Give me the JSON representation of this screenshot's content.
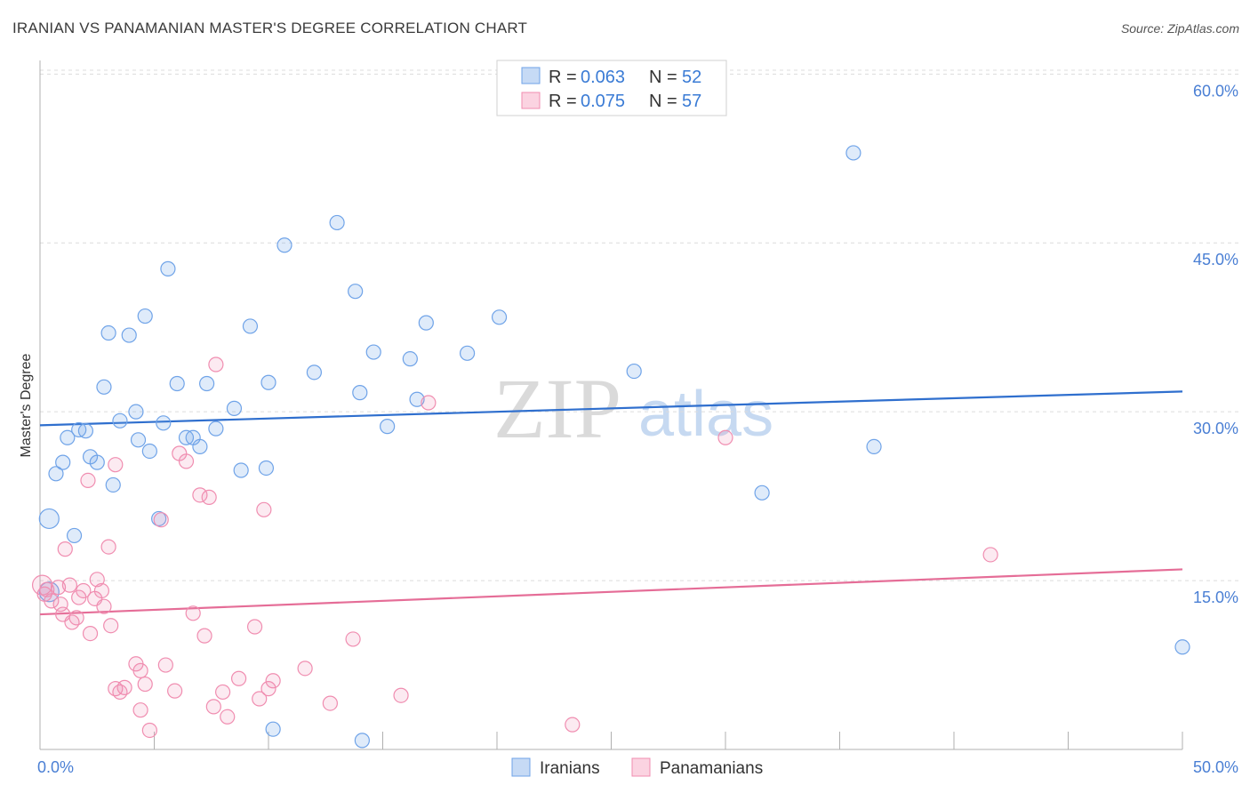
{
  "title": "IRANIAN VS PANAMANIAN MASTER'S DEGREE CORRELATION CHART",
  "source": "Source: ZipAtlas.com",
  "watermark": {
    "zip": "ZIP",
    "atlas": "atlas"
  },
  "legend": {
    "series": [
      {
        "r_label": "R = ",
        "r_value": "0.063",
        "n_label": "N = ",
        "n_value": "52"
      },
      {
        "r_label": "R = ",
        "r_value": "0.075",
        "n_label": "N = ",
        "n_value": "57"
      }
    ]
  },
  "chart_data": {
    "type": "scatter",
    "title": "IRANIAN VS PANAMANIAN MASTER'S DEGREE CORRELATION CHART",
    "xlabel": "",
    "ylabel": "Master's Degree",
    "xlim": [
      0,
      50
    ],
    "ylim": [
      0,
      62
    ],
    "x_tick_labels": [
      "0.0%",
      "50.0%"
    ],
    "y_ticks": [
      15,
      30,
      45,
      60
    ],
    "y_tick_labels": [
      "15.0%",
      "30.0%",
      "45.0%",
      "60.0%"
    ],
    "colors": {
      "Iranians": "#6fa3e8",
      "Panamanians": "#f08db0",
      "trend_Iranians": "#2f6fce",
      "trend_Panamanians": "#e56d97"
    },
    "series": [
      {
        "name": "Iranians",
        "r": 0.063,
        "n": 52,
        "trend": {
          "x": [
            0,
            50
          ],
          "y": [
            28.8,
            31.8
          ]
        },
        "points": [
          {
            "x": 0.4,
            "y": 20.5,
            "big": true
          },
          {
            "x": 0.4,
            "y": 14.0,
            "big": true
          },
          {
            "x": 0.7,
            "y": 24.5
          },
          {
            "x": 1.0,
            "y": 25.5
          },
          {
            "x": 1.2,
            "y": 27.7
          },
          {
            "x": 1.5,
            "y": 19.0
          },
          {
            "x": 1.7,
            "y": 28.4
          },
          {
            "x": 2.0,
            "y": 28.3
          },
          {
            "x": 2.2,
            "y": 26.0
          },
          {
            "x": 2.5,
            "y": 25.5
          },
          {
            "x": 2.8,
            "y": 32.2
          },
          {
            "x": 3.0,
            "y": 37.0
          },
          {
            "x": 3.2,
            "y": 23.5
          },
          {
            "x": 3.5,
            "y": 29.2
          },
          {
            "x": 3.9,
            "y": 36.8
          },
          {
            "x": 4.2,
            "y": 30.0
          },
          {
            "x": 4.3,
            "y": 27.5
          },
          {
            "x": 4.6,
            "y": 38.5
          },
          {
            "x": 4.8,
            "y": 26.5
          },
          {
            "x": 5.2,
            "y": 20.5
          },
          {
            "x": 5.4,
            "y": 29.0
          },
          {
            "x": 5.6,
            "y": 42.7
          },
          {
            "x": 6.0,
            "y": 32.5
          },
          {
            "x": 6.4,
            "y": 27.7
          },
          {
            "x": 6.7,
            "y": 27.7
          },
          {
            "x": 7.0,
            "y": 26.9
          },
          {
            "x": 7.3,
            "y": 32.5
          },
          {
            "x": 7.7,
            "y": 28.5
          },
          {
            "x": 8.5,
            "y": 30.3
          },
          {
            "x": 8.8,
            "y": 24.8
          },
          {
            "x": 9.2,
            "y": 37.6
          },
          {
            "x": 9.9,
            "y": 25.0
          },
          {
            "x": 10.0,
            "y": 32.6
          },
          {
            "x": 10.2,
            "y": 1.8
          },
          {
            "x": 10.7,
            "y": 44.8
          },
          {
            "x": 12.0,
            "y": 33.5
          },
          {
            "x": 13.0,
            "y": 46.8
          },
          {
            "x": 13.8,
            "y": 40.7
          },
          {
            "x": 14.0,
            "y": 31.7
          },
          {
            "x": 14.1,
            "y": 0.8
          },
          {
            "x": 14.6,
            "y": 35.3
          },
          {
            "x": 15.2,
            "y": 28.7
          },
          {
            "x": 16.2,
            "y": 34.7
          },
          {
            "x": 16.5,
            "y": 31.1
          },
          {
            "x": 16.9,
            "y": 37.9
          },
          {
            "x": 18.7,
            "y": 35.2
          },
          {
            "x": 20.1,
            "y": 38.4
          },
          {
            "x": 26.0,
            "y": 33.6
          },
          {
            "x": 31.6,
            "y": 22.8
          },
          {
            "x": 35.6,
            "y": 53.0
          },
          {
            "x": 36.5,
            "y": 26.9
          },
          {
            "x": 50.0,
            "y": 9.1
          }
        ]
      },
      {
        "name": "Panamanians",
        "r": 0.075,
        "n": 57,
        "trend": {
          "x": [
            0,
            50
          ],
          "y": [
            12.0,
            16.0
          ]
        },
        "points": [
          {
            "x": 0.1,
            "y": 14.6,
            "big": true
          },
          {
            "x": 0.3,
            "y": 14.2
          },
          {
            "x": 0.5,
            "y": 13.2
          },
          {
            "x": 0.8,
            "y": 14.4
          },
          {
            "x": 0.9,
            "y": 12.9
          },
          {
            "x": 1.0,
            "y": 12.0
          },
          {
            "x": 1.1,
            "y": 17.8
          },
          {
            "x": 1.3,
            "y": 14.6
          },
          {
            "x": 1.4,
            "y": 11.3
          },
          {
            "x": 1.6,
            "y": 11.7
          },
          {
            "x": 1.7,
            "y": 13.5
          },
          {
            "x": 1.9,
            "y": 14.1
          },
          {
            "x": 2.1,
            "y": 23.9
          },
          {
            "x": 2.2,
            "y": 10.3
          },
          {
            "x": 2.4,
            "y": 13.4
          },
          {
            "x": 2.5,
            "y": 15.1
          },
          {
            "x": 2.7,
            "y": 14.1
          },
          {
            "x": 2.8,
            "y": 12.7
          },
          {
            "x": 3.0,
            "y": 18.0
          },
          {
            "x": 3.1,
            "y": 11.0
          },
          {
            "x": 3.3,
            "y": 25.3
          },
          {
            "x": 3.3,
            "y": 5.4
          },
          {
            "x": 3.5,
            "y": 5.1
          },
          {
            "x": 3.7,
            "y": 5.5
          },
          {
            "x": 4.2,
            "y": 7.6
          },
          {
            "x": 4.4,
            "y": 7.0
          },
          {
            "x": 4.4,
            "y": 3.5
          },
          {
            "x": 4.6,
            "y": 5.8
          },
          {
            "x": 4.8,
            "y": 1.7
          },
          {
            "x": 5.3,
            "y": 20.4
          },
          {
            "x": 5.5,
            "y": 7.5
          },
          {
            "x": 5.9,
            "y": 5.2
          },
          {
            "x": 6.1,
            "y": 26.3
          },
          {
            "x": 6.4,
            "y": 25.6
          },
          {
            "x": 6.7,
            "y": 12.1
          },
          {
            "x": 7.0,
            "y": 22.6
          },
          {
            "x": 7.2,
            "y": 10.1
          },
          {
            "x": 7.4,
            "y": 22.4
          },
          {
            "x": 7.6,
            "y": 3.8
          },
          {
            "x": 7.7,
            "y": 34.2
          },
          {
            "x": 8.0,
            "y": 5.1
          },
          {
            "x": 8.2,
            "y": 2.9
          },
          {
            "x": 8.7,
            "y": 6.3
          },
          {
            "x": 9.4,
            "y": 10.9
          },
          {
            "x": 9.6,
            "y": 4.5
          },
          {
            "x": 9.8,
            "y": 21.3
          },
          {
            "x": 10.0,
            "y": 5.4
          },
          {
            "x": 10.2,
            "y": 6.1
          },
          {
            "x": 11.6,
            "y": 7.2
          },
          {
            "x": 12.7,
            "y": 4.1
          },
          {
            "x": 13.7,
            "y": 9.8
          },
          {
            "x": 15.8,
            "y": 4.8
          },
          {
            "x": 17.0,
            "y": 30.8
          },
          {
            "x": 23.3,
            "y": 2.2
          },
          {
            "x": 30.0,
            "y": 27.7
          },
          {
            "x": 41.6,
            "y": 17.3
          },
          {
            "x": 0.2,
            "y": 13.8
          }
        ]
      }
    ]
  }
}
